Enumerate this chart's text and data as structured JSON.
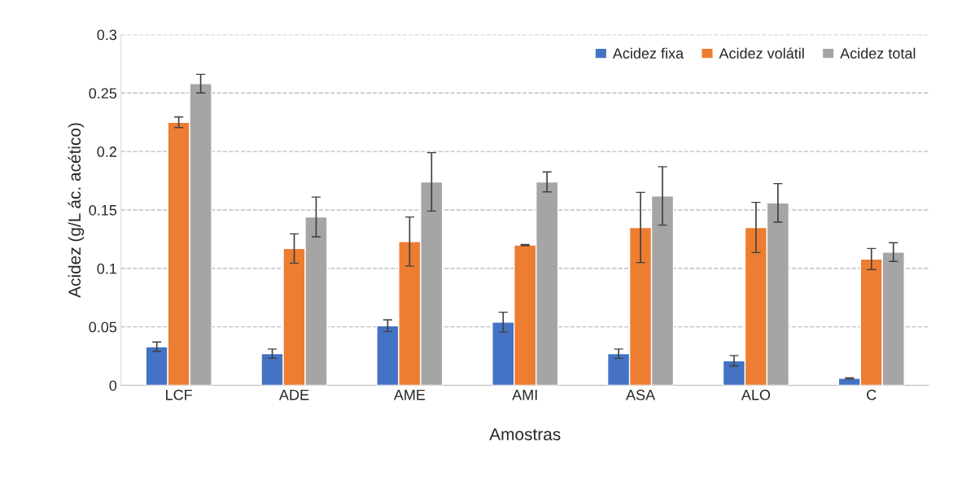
{
  "chart_data": {
    "type": "bar",
    "xlabel": "Amostras",
    "ylabel": "Acidez (g/L ác. acético)",
    "categories": [
      "LCF",
      "ADE",
      "AME",
      "AMI",
      "ASA",
      "ALO",
      "C"
    ],
    "series": [
      {
        "name": "Acidez fixa",
        "color": "#4472c4",
        "values": [
          0.033,
          0.027,
          0.051,
          0.054,
          0.027,
          0.021,
          0.006
        ],
        "errors": [
          0.004,
          0.004,
          0.005,
          0.0085,
          0.004,
          0.0045,
          0.0005
        ]
      },
      {
        "name": "Acidez volátil",
        "color": "#ed7d31",
        "values": [
          0.225,
          0.117,
          0.123,
          0.12,
          0.135,
          0.135,
          0.108
        ],
        "errors": [
          0.0045,
          0.0125,
          0.021,
          0.0005,
          0.03,
          0.0215,
          0.009
        ]
      },
      {
        "name": "Acidez total",
        "color": "#a5a5a5",
        "values": [
          0.258,
          0.144,
          0.174,
          0.174,
          0.162,
          0.156,
          0.114
        ],
        "errors": [
          0.008,
          0.017,
          0.025,
          0.0085,
          0.025,
          0.0165,
          0.008
        ]
      }
    ],
    "ylim": [
      0,
      0.3
    ],
    "yticks": [
      0,
      0.05,
      0.1,
      0.15,
      0.2,
      0.25,
      0.3
    ],
    "grid": "y",
    "legend": "top right"
  }
}
